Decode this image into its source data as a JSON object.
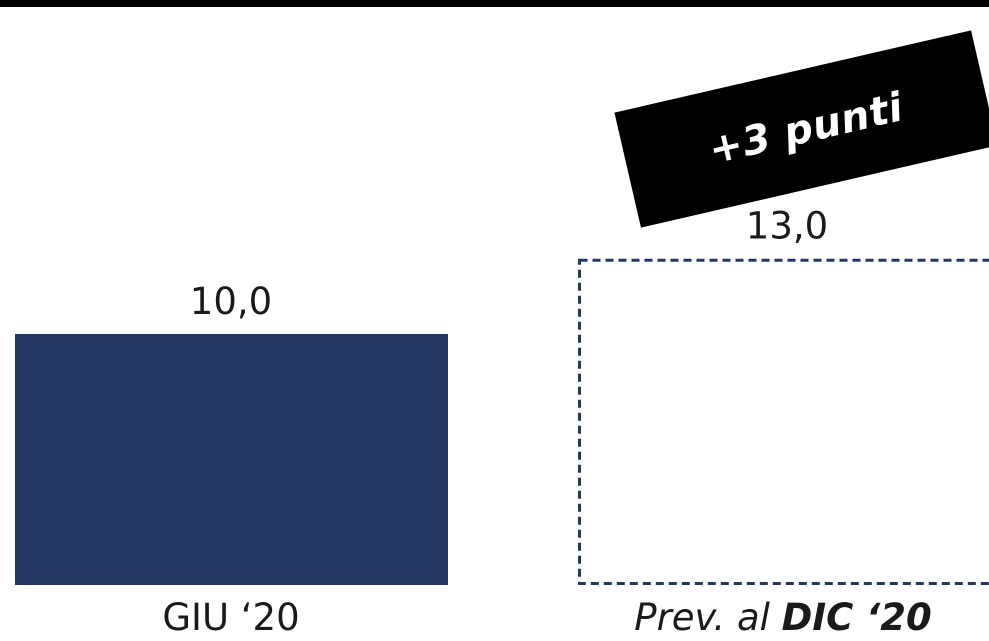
{
  "chart_data": {
    "type": "bar",
    "categories": [
      "GIU '20",
      "Prev. al DIC '20"
    ],
    "series": [
      {
        "values": [
          10.0,
          13.0
        ],
        "value_labels": [
          "10,0",
          "13,0"
        ]
      }
    ],
    "forecast_index": 1,
    "ylim": [
      0,
      13
    ],
    "grid": false,
    "legend": "none",
    "annotation": "+3 punti",
    "category_parts": {
      "first": "GIU ‘20",
      "second_prefix": "Prev. al ",
      "second_bold": "DIC ‘20"
    }
  },
  "colors": {
    "bar": "#223861",
    "forecast_border": "#223861",
    "badge": "#000000",
    "badge_text": "#ffffff",
    "top_bar": "#000000"
  }
}
